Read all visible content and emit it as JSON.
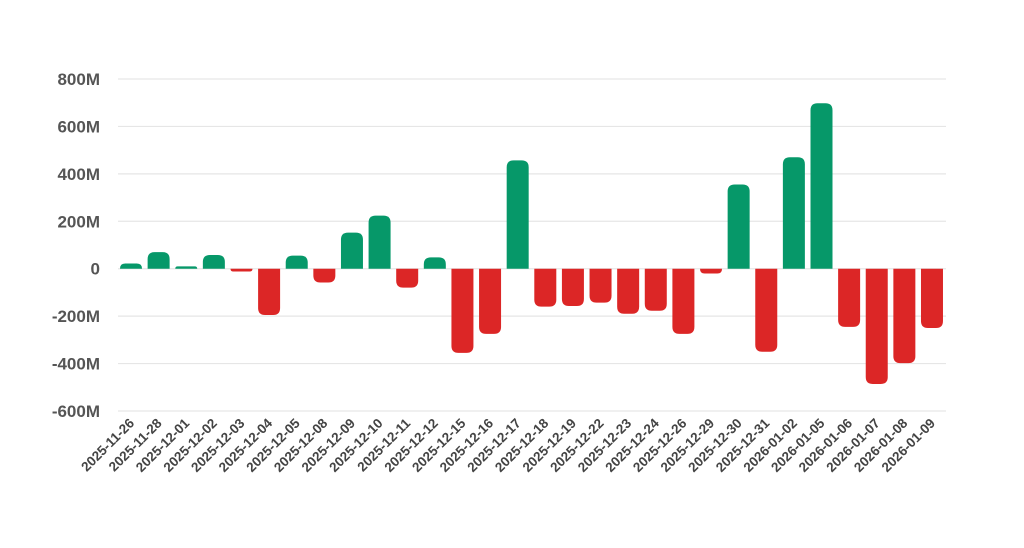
{
  "chart_data": {
    "type": "bar",
    "title": "",
    "xlabel": "",
    "ylabel": "",
    "ylim": [
      -600000000,
      800000000
    ],
    "y_ticks": [
      800000000,
      600000000,
      400000000,
      200000000,
      0,
      -200000000,
      -400000000,
      -600000000
    ],
    "y_tick_labels": [
      "800M",
      "600M",
      "400M",
      "200M",
      "0",
      "-200M",
      "-400M",
      "-600M"
    ],
    "grid": true,
    "legend": null,
    "colors": {
      "positive": "#069869",
      "negative": "#DC2626",
      "grid": "#e6e6e6",
      "tick_text": "#555555"
    },
    "categories": [
      "2025-11-26",
      "2025-11-28",
      "2025-12-01",
      "2025-12-02",
      "2025-12-03",
      "2025-12-04",
      "2025-12-05",
      "2025-12-08",
      "2025-12-09",
      "2025-12-10",
      "2025-12-11",
      "2025-12-12",
      "2025-12-15",
      "2025-12-16",
      "2025-12-17",
      "2025-12-18",
      "2025-12-19",
      "2025-12-22",
      "2025-12-23",
      "2025-12-24",
      "2025-12-26",
      "2025-12-29",
      "2025-12-30",
      "2025-12-31",
      "2026-01-02",
      "2026-01-05",
      "2026-01-06",
      "2026-01-07",
      "2026-01-08",
      "2026-01-09"
    ],
    "values": [
      22000000,
      70000000,
      10000000,
      58000000,
      -12000000,
      -195000000,
      55000000,
      -58000000,
      152000000,
      224000000,
      -80000000,
      48000000,
      -355000000,
      -275000000,
      457000000,
      -160000000,
      -157000000,
      -143000000,
      -190000000,
      -177000000,
      -275000000,
      -20000000,
      355000000,
      -350000000,
      470000000,
      698000000,
      -245000000,
      -486000000,
      -398000000,
      -250000000
    ]
  }
}
